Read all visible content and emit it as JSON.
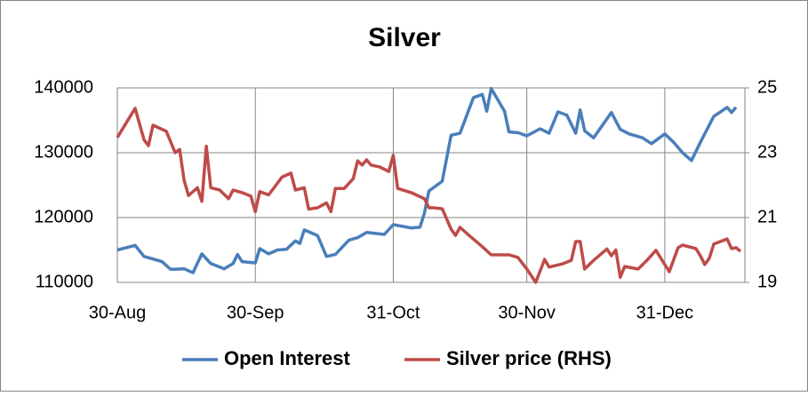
{
  "chart_data": {
    "type": "line",
    "title": "Silver",
    "xlim": [
      "30-Aug",
      "18-Jan"
    ],
    "xticks": [
      "30-Aug",
      "30-Sep",
      "31-Oct",
      "30-Nov",
      "31-Dec"
    ],
    "ylim": [
      110000,
      140000
    ],
    "yticks": [
      110000,
      120000,
      130000,
      140000
    ],
    "y2lim": [
      19,
      25
    ],
    "y2ticks": [
      19,
      21,
      23,
      25
    ],
    "grid": true,
    "legend": "bottom",
    "series": [
      {
        "name": "Open Interest",
        "color": "#4a7ebb",
        "x": [
          "30-Aug",
          "3-Sep",
          "5-Sep",
          "9-Sep",
          "11-Sep",
          "14-Sep",
          "16-Sep",
          "18-Sep",
          "20-Sep",
          "23-Sep",
          "25-Sep",
          "26-Sep",
          "27-Sep",
          "30-Sep",
          "1-Oct",
          "3-Oct",
          "5-Oct",
          "7-Oct",
          "9-Oct",
          "10-Oct",
          "11-Oct",
          "14-Oct",
          "16-Oct",
          "18-Oct",
          "21-Oct",
          "23-Oct",
          "25-Oct",
          "29-Oct",
          "31-Oct",
          "4-Nov",
          "6-Nov",
          "7-Nov",
          "8-Nov",
          "11-Nov",
          "13-Nov",
          "15-Nov",
          "18-Nov",
          "20-Nov",
          "21-Nov",
          "22-Nov",
          "25-Nov",
          "26-Nov",
          "28-Nov",
          "30-Nov",
          "3-Dec",
          "5-Dec",
          "7-Dec",
          "9-Dec",
          "11-Dec",
          "12-Dec",
          "13-Dec",
          "15-Dec",
          "19-Dec",
          "21-Dec",
          "23-Dec",
          "26-Dec",
          "28-Dec",
          "31-Dec",
          "2-Jan",
          "4-Jan",
          "6-Jan",
          "8-Jan",
          "11-Jan",
          "14-Jan",
          "15-Jan",
          "16-Jan"
        ],
        "values": [
          115000,
          115700,
          114000,
          113200,
          112000,
          112100,
          111500,
          114400,
          112900,
          112100,
          112900,
          114300,
          113200,
          113000,
          115200,
          114400,
          115000,
          115100,
          116400,
          116000,
          118100,
          117200,
          114000,
          114300,
          116500,
          116900,
          117700,
          117400,
          118900,
          118400,
          118500,
          120700,
          124100,
          125600,
          132700,
          133000,
          138500,
          139000,
          136400,
          139900,
          136400,
          133200,
          133100,
          132600,
          133700,
          133000,
          136300,
          135800,
          133000,
          136600,
          133400,
          132300,
          136200,
          133600,
          132900,
          132300,
          131400,
          132900,
          131600,
          130000,
          128800,
          131600,
          135600,
          137000,
          136200,
          137000
        ]
      },
      {
        "name": "Silver price (RHS)",
        "color": "#be4b48",
        "axis": "y2",
        "x": [
          "30-Aug",
          "3-Sep",
          "5-Sep",
          "6-Sep",
          "7-Sep",
          "10-Sep",
          "12-Sep",
          "13-Sep",
          "14-Sep",
          "15-Sep",
          "17-Sep",
          "18-Sep",
          "19-Sep",
          "20-Sep",
          "22-Sep",
          "24-Sep",
          "25-Sep",
          "27-Sep",
          "29-Sep",
          "30-Sep",
          "1-Oct",
          "3-Oct",
          "6-Oct",
          "8-Oct",
          "9-Oct",
          "11-Oct",
          "12-Oct",
          "14-Oct",
          "16-Oct",
          "17-Oct",
          "18-Oct",
          "20-Oct",
          "22-Oct",
          "23-Oct",
          "24-Oct",
          "25-Oct",
          "26-Oct",
          "28-Oct",
          "30-Oct",
          "31-Oct",
          "1-Nov",
          "4-Nov",
          "7-Nov",
          "8-Nov",
          "9-Nov",
          "11-Nov",
          "13-Nov",
          "14-Nov",
          "15-Nov",
          "17-Nov",
          "20-Nov",
          "22-Nov",
          "26-Nov",
          "28-Nov",
          "30-Nov",
          "2-Dec",
          "4-Dec",
          "5-Dec",
          "8-Dec",
          "10-Dec",
          "11-Dec",
          "12-Dec",
          "13-Dec",
          "15-Dec",
          "18-Dec",
          "19-Dec",
          "20-Dec",
          "21-Dec",
          "22-Dec",
          "25-Dec",
          "27-Dec",
          "29-Dec",
          "1-Jan",
          "3-Jan",
          "4-Jan",
          "7-Jan",
          "8-Jan",
          "9-Jan",
          "10-Jan",
          "11-Jan",
          "14-Jan",
          "15-Jan",
          "16-Jan",
          "17-Jan"
        ],
        "values": [
          23.47,
          24.37,
          23.4,
          23.22,
          23.85,
          23.66,
          23.0,
          23.1,
          22.15,
          21.68,
          21.92,
          21.5,
          23.2,
          21.92,
          21.85,
          21.58,
          21.85,
          21.77,
          21.66,
          21.18,
          21.8,
          21.7,
          22.25,
          22.37,
          21.85,
          21.92,
          21.26,
          21.3,
          21.45,
          21.18,
          21.9,
          21.9,
          22.2,
          22.75,
          22.62,
          22.78,
          22.62,
          22.56,
          22.42,
          22.92,
          21.9,
          21.77,
          21.58,
          21.3,
          21.3,
          21.27,
          20.64,
          20.45,
          20.7,
          20.45,
          20.1,
          19.85,
          19.85,
          19.77,
          19.41,
          19.0,
          19.71,
          19.47,
          19.57,
          19.68,
          20.26,
          20.26,
          19.41,
          19.68,
          20.03,
          19.82,
          20.0,
          19.16,
          19.49,
          19.41,
          19.68,
          19.99,
          19.33,
          20.07,
          20.15,
          20.04,
          19.82,
          19.55,
          19.74,
          20.18,
          20.34,
          20.04,
          20.07,
          19.96
        ]
      }
    ]
  }
}
